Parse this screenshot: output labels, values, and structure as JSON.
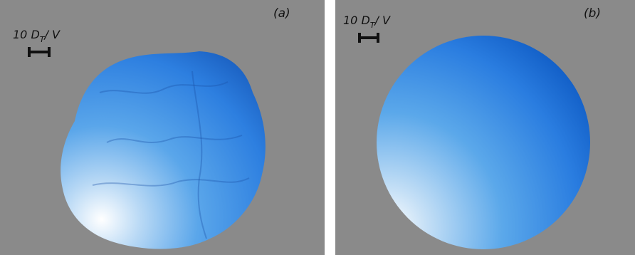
{
  "panels": [
    {
      "label": "(a)",
      "scale_bar": {
        "number": "10",
        "symbol": "D",
        "subscript": "T",
        "suffix": "/ V"
      }
    },
    {
      "label": "(b)",
      "scale_bar": {
        "number": "10",
        "symbol": "D",
        "subscript": "T",
        "suffix": "/ V"
      }
    }
  ]
}
